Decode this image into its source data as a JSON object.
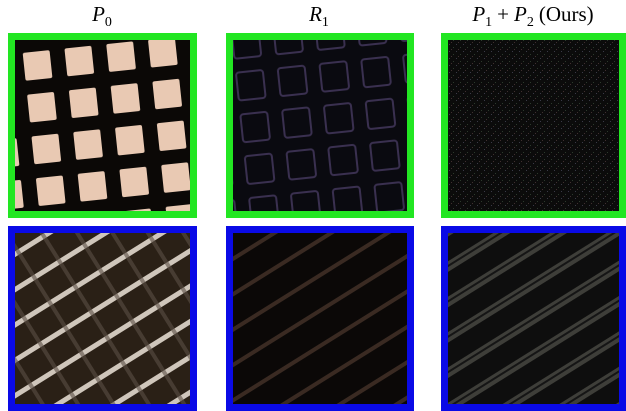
{
  "columns": [
    {
      "title": [
        {
          "italic": "P",
          "sub": "0"
        }
      ]
    },
    {
      "title": [
        {
          "italic": "R",
          "sub": "1"
        }
      ]
    },
    {
      "title": [
        {
          "italic": "P",
          "sub": "1"
        },
        {
          "text": "+"
        },
        {
          "italic": "P",
          "sub": "2"
        },
        {
          "text": "(Ours)"
        }
      ]
    }
  ]
}
